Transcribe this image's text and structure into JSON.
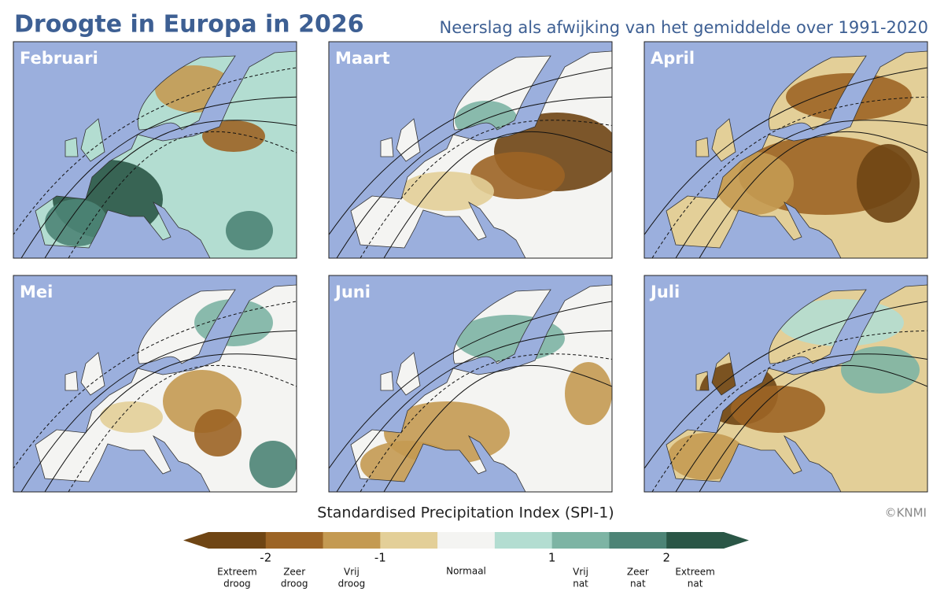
{
  "title": "Droogte in Europa in 2026",
  "subtitle": "Neerslag als afwijking van het gemiddelde over 1991-2020",
  "panels": [
    "Februari",
    "Maart",
    "April",
    "Mei",
    "Juni",
    "Juli"
  ],
  "colorbar": {
    "title": "Standardised Precipitation Index (SPI-1)",
    "boundaries": [
      -2,
      -1.5,
      -1,
      -0.5,
      0.5,
      1,
      1.5,
      2
    ],
    "ticks": [
      -2,
      -1,
      1,
      2
    ],
    "colors": [
      "#6f4514",
      "#9c6425",
      "#c49a52",
      "#e3cf98",
      "#f4f4f2",
      "#b3ddd1",
      "#7db4a4",
      "#4d8476",
      "#2a5646"
    ],
    "classes": [
      [
        "Extreem",
        "droog"
      ],
      [
        "Zeer",
        "droog"
      ],
      [
        "Vrij",
        "droog"
      ],
      null,
      [
        "Normaal"
      ],
      null,
      [
        "Vrij",
        "nat"
      ],
      [
        "Zeer",
        "nat"
      ],
      [
        "Extreem",
        "nat"
      ]
    ]
  },
  "credit": "©KNMI"
}
